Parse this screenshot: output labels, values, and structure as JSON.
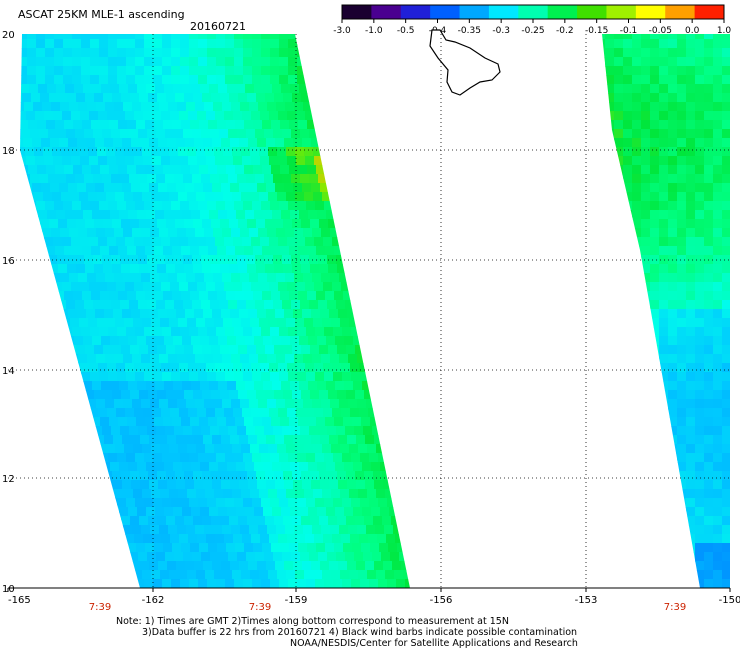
{
  "title": "ASCAT 25KM MLE-1 ascending",
  "date": "20160721",
  "colorbar": {
    "ticks": [
      "-3.0",
      "-1.0",
      "-0.5",
      "-0.4",
      "-0.35",
      "-0.3",
      "-0.25",
      "-0.2",
      "-0.15",
      "-0.1",
      "-0.05",
      "0.0",
      "1.0"
    ],
    "colors": [
      "#1a0030",
      "#4a0090",
      "#2020d8",
      "#0060ff",
      "#00a8ff",
      "#00e8ff",
      "#00ffb0",
      "#00f050",
      "#40e000",
      "#a0f000",
      "#ffff00",
      "#ffa000",
      "#ff2000"
    ]
  },
  "map": {
    "lon_ticks": [
      "-165",
      "-162",
      "-159",
      "-156",
      "-153",
      "-150"
    ],
    "lat_ticks": [
      "10",
      "12",
      "14",
      "16",
      "18",
      "20"
    ],
    "time_labels": [
      "7:39",
      "7:39",
      "7:39"
    ]
  },
  "notes": {
    "line1": "Note: 1) Times are GMT 2)Times along bottom correspond to measurement at 15N",
    "line2": "3)Data buffer is 22 hrs from 20160721 4) Black wind barbs indicate possible contamination",
    "line3": "NOAA/NESDIS/Center for Satellite Applications and Research"
  }
}
